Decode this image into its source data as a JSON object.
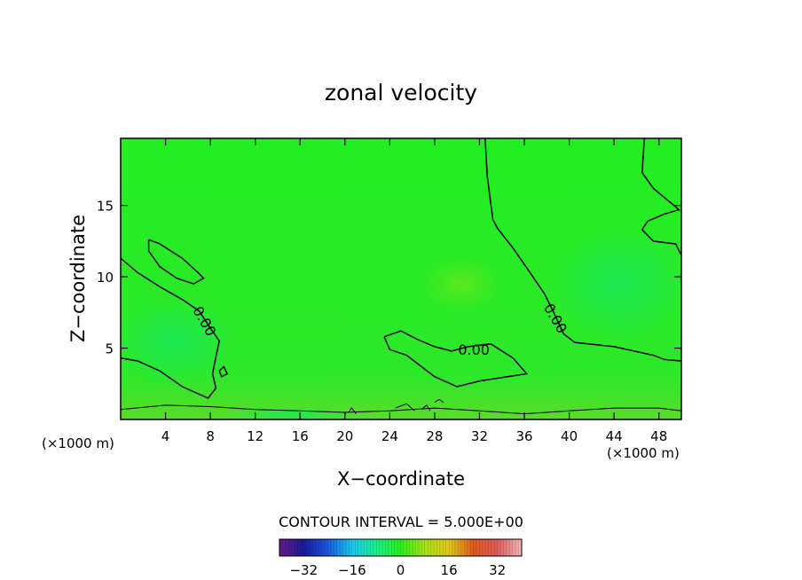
{
  "chart_data": {
    "type": "heatmap",
    "title": "zonal velocity",
    "xlabel": "X−coordinate",
    "ylabel": "Z−coordinate",
    "x_unit_left": "(×1000 m)",
    "x_unit_right": "(×1000 m)",
    "xlim": [
      0,
      50
    ],
    "ylim": [
      0,
      19.7
    ],
    "x_ticks": [
      4,
      8,
      12,
      16,
      20,
      24,
      28,
      32,
      36,
      40,
      44,
      48
    ],
    "x_tick_labels": [
      "4",
      "8",
      "12",
      "16",
      "20",
      "24",
      "28",
      "32",
      "36",
      "40",
      "44",
      "48"
    ],
    "y_ticks": [
      5,
      10,
      15
    ],
    "y_tick_labels": [
      "5",
      "10",
      "15"
    ],
    "contour_interval_text": "CONTOUR INTERVAL = 5.000E+00",
    "contour_labels": [
      {
        "text": "0.00",
        "x": 7.5,
        "z": 6.9
      },
      {
        "text": "0.00",
        "x": 31.5,
        "z": 4.9
      },
      {
        "text": "0.00",
        "x": 38.8,
        "z": 7.1
      }
    ],
    "zero_contours": [
      [
        [
          0,
          11.3
        ],
        [
          1.5,
          10.3
        ],
        [
          3.5,
          9.3
        ],
        [
          5.5,
          8.4
        ],
        [
          7,
          7.6
        ],
        [
          8,
          6.4
        ],
        [
          8.8,
          5.5
        ],
        [
          8.5,
          4.4
        ],
        [
          8.2,
          3.2
        ],
        [
          8.5,
          2.2
        ],
        [
          7.8,
          1.5
        ],
        [
          5.5,
          2.3
        ],
        [
          3.5,
          3.4
        ],
        [
          1.5,
          4.1
        ],
        [
          0,
          4.3
        ]
      ],
      [
        [
          2.5,
          12.6
        ],
        [
          3.5,
          12.3
        ],
        [
          5.5,
          11.3
        ],
        [
          6.9,
          10.3
        ],
        [
          7.4,
          9.9
        ],
        [
          6.5,
          9.5
        ],
        [
          5,
          9.9
        ],
        [
          3.5,
          10.7
        ],
        [
          2.5,
          11.8
        ],
        [
          2.5,
          12.6
        ]
      ],
      [
        [
          32.5,
          19.7
        ],
        [
          32.7,
          17
        ],
        [
          33.2,
          14
        ],
        [
          33.6,
          13.4
        ],
        [
          35,
          12
        ],
        [
          36.5,
          10.3
        ],
        [
          37.8,
          8.8
        ],
        [
          38.5,
          7.7
        ],
        [
          39.5,
          6
        ],
        [
          40.5,
          5.4
        ],
        [
          44,
          5.1
        ],
        [
          47.5,
          4.5
        ],
        [
          48.5,
          4.2
        ],
        [
          50,
          4.1
        ]
      ],
      [
        [
          46.7,
          19.7
        ],
        [
          46.5,
          17.3
        ],
        [
          47.5,
          16.2
        ],
        [
          49.8,
          14.7
        ],
        [
          48.5,
          14.4
        ],
        [
          47,
          13.9
        ],
        [
          46.5,
          13.3
        ],
        [
          47.5,
          12.5
        ],
        [
          49.5,
          12.3
        ],
        [
          50,
          11.5
        ]
      ],
      [
        [
          23.5,
          5.8
        ],
        [
          25,
          6.2
        ],
        [
          26.5,
          5.6
        ],
        [
          28,
          5.1
        ],
        [
          29.5,
          4.8
        ],
        [
          31,
          5.1
        ],
        [
          33,
          5.3
        ],
        [
          35,
          4.3
        ],
        [
          36.2,
          3.2
        ],
        [
          34.5,
          3.0
        ],
        [
          32,
          2.7
        ],
        [
          30,
          2.3
        ],
        [
          28,
          3.0
        ],
        [
          25.5,
          4.5
        ],
        [
          24,
          4.9
        ],
        [
          23.5,
          5.8
        ]
      ],
      [
        [
          8.8,
          3.4
        ],
        [
          9.2,
          3.7
        ],
        [
          9.5,
          3.2
        ],
        [
          9.0,
          3.0
        ],
        [
          8.8,
          3.4
        ]
      ],
      [
        [
          0,
          0.7
        ],
        [
          4,
          1.0
        ],
        [
          8,
          0.9
        ],
        [
          12,
          0.7
        ],
        [
          16,
          0.6
        ],
        [
          20,
          0.5
        ],
        [
          24,
          0.6
        ],
        [
          28,
          0.8
        ],
        [
          32,
          0.6
        ],
        [
          36,
          0.4
        ],
        [
          40,
          0.6
        ],
        [
          44,
          0.8
        ],
        [
          48,
          0.8
        ],
        [
          50,
          0.6
        ]
      ],
      [
        [
          20.3,
          0.5
        ],
        [
          20.6,
          0.8
        ],
        [
          21,
          0.4
        ]
      ],
      [
        [
          24.5,
          0.8
        ],
        [
          25.5,
          1.1
        ],
        [
          26.2,
          0.6
        ]
      ],
      [
        [
          26.8,
          0.7
        ],
        [
          27.3,
          1.0
        ],
        [
          27.6,
          0.6
        ]
      ],
      [
        [
          28,
          1.2
        ],
        [
          28.4,
          1.4
        ],
        [
          28.8,
          1.2
        ]
      ]
    ],
    "colorbar": {
      "vmin": -40,
      "vmax": 40,
      "tick_values": [
        -32,
        -16,
        0,
        16,
        32
      ],
      "tick_labels": [
        "−32",
        "−16",
        "0",
        "16",
        "32"
      ],
      "colors": [
        "#6a1a8a",
        "#1a1a9a",
        "#1a58e0",
        "#1ac8f0",
        "#1af08a",
        "#2af01a",
        "#a8e01a",
        "#e0c81a",
        "#e05a1a",
        "#e05a5a",
        "#f0b8b8"
      ]
    }
  }
}
